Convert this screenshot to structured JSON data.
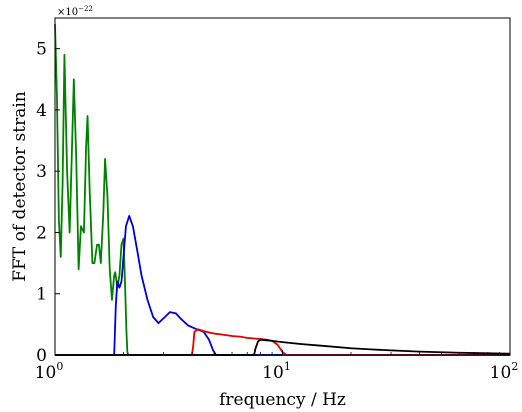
{
  "chart_data": {
    "type": "line",
    "title": "",
    "xlabel": "frequency / Hz",
    "ylabel": "FFT of detector strain",
    "x_scale": "log",
    "xlim": [
      1,
      100
    ],
    "ylim": [
      0,
      5.5
    ],
    "y_multiplier": {
      "base": "×10",
      "exponent": "−22"
    },
    "x_ticks": [
      {
        "value": 1,
        "base": "10",
        "exp": "0"
      },
      {
        "value": 10,
        "base": "10",
        "exp": "1"
      },
      {
        "value": 100,
        "base": "10",
        "exp": "2"
      }
    ],
    "y_ticks": [
      "0",
      "1",
      "2",
      "3",
      "4",
      "5"
    ],
    "legend": "none",
    "grid": false,
    "series": [
      {
        "color": "#008000",
        "points": [
          [
            1.0,
            5.4
          ],
          [
            1.02,
            4.2
          ],
          [
            1.04,
            2.2
          ],
          [
            1.06,
            1.6
          ],
          [
            1.08,
            2.8
          ],
          [
            1.1,
            4.9
          ],
          [
            1.13,
            3.0
          ],
          [
            1.16,
            2.0
          ],
          [
            1.19,
            3.5
          ],
          [
            1.21,
            4.5
          ],
          [
            1.24,
            3.2
          ],
          [
            1.27,
            1.4
          ],
          [
            1.3,
            2.1
          ],
          [
            1.34,
            2.0
          ],
          [
            1.37,
            3.4
          ],
          [
            1.39,
            3.9
          ],
          [
            1.42,
            2.7
          ],
          [
            1.46,
            1.5
          ],
          [
            1.49,
            1.5
          ],
          [
            1.53,
            1.8
          ],
          [
            1.56,
            1.8
          ],
          [
            1.59,
            1.5
          ],
          [
            1.63,
            2.3
          ],
          [
            1.66,
            3.2
          ],
          [
            1.7,
            2.6
          ],
          [
            1.74,
            1.4
          ],
          [
            1.78,
            0.9
          ],
          [
            1.82,
            1.3
          ],
          [
            1.84,
            1.35
          ],
          [
            1.88,
            1.1
          ],
          [
            1.92,
            1.3
          ],
          [
            1.96,
            1.8
          ],
          [
            2.0,
            1.9
          ],
          [
            2.03,
            1.2
          ],
          [
            2.06,
            0.4
          ],
          [
            2.08,
            0.05
          ],
          [
            2.1,
            0.0
          ],
          [
            10.0,
            0.0
          ]
        ]
      },
      {
        "color": "#0000cc",
        "points": [
          [
            1.0,
            0.0
          ],
          [
            1.82,
            0.0
          ],
          [
            1.85,
            0.8
          ],
          [
            1.88,
            1.2
          ],
          [
            1.92,
            1.1
          ],
          [
            1.96,
            1.2
          ],
          [
            2.0,
            1.6
          ],
          [
            2.05,
            2.1
          ],
          [
            2.12,
            2.27
          ],
          [
            2.2,
            2.1
          ],
          [
            2.3,
            1.7
          ],
          [
            2.4,
            1.3
          ],
          [
            2.55,
            0.9
          ],
          [
            2.7,
            0.62
          ],
          [
            2.85,
            0.52
          ],
          [
            3.0,
            0.6
          ],
          [
            3.2,
            0.7
          ],
          [
            3.4,
            0.68
          ],
          [
            3.6,
            0.58
          ],
          [
            3.85,
            0.48
          ],
          [
            4.2,
            0.42
          ],
          [
            4.5,
            0.38
          ],
          [
            4.75,
            0.25
          ],
          [
            4.95,
            0.08
          ],
          [
            5.1,
            0.0
          ],
          [
            100.0,
            0.0
          ]
        ]
      },
      {
        "color": "#e00000",
        "points": [
          [
            1.0,
            0.0
          ],
          [
            4.0,
            0.0
          ],
          [
            4.05,
            0.15
          ],
          [
            4.1,
            0.38
          ],
          [
            4.25,
            0.42
          ],
          [
            4.6,
            0.38
          ],
          [
            5.0,
            0.35
          ],
          [
            5.5,
            0.33
          ],
          [
            6.0,
            0.31
          ],
          [
            6.5,
            0.3
          ],
          [
            7.0,
            0.28
          ],
          [
            7.5,
            0.27
          ],
          [
            8.0,
            0.26
          ],
          [
            8.5,
            0.25
          ],
          [
            9.0,
            0.23
          ],
          [
            9.5,
            0.17
          ],
          [
            10.0,
            0.05
          ],
          [
            10.4,
            0.0
          ],
          [
            100.0,
            0.0
          ]
        ]
      },
      {
        "color": "#000000",
        "points": [
          [
            1.0,
            0.0
          ],
          [
            7.5,
            0.0
          ],
          [
            7.6,
            0.1
          ],
          [
            7.8,
            0.22
          ],
          [
            8.0,
            0.25
          ],
          [
            9.0,
            0.23
          ],
          [
            10.0,
            0.21
          ],
          [
            12.0,
            0.18
          ],
          [
            15.0,
            0.15
          ],
          [
            20.0,
            0.11
          ],
          [
            25.0,
            0.09
          ],
          [
            30.0,
            0.075
          ],
          [
            40.0,
            0.055
          ],
          [
            50.0,
            0.045
          ],
          [
            60.0,
            0.037
          ],
          [
            70.0,
            0.032
          ],
          [
            80.0,
            0.028
          ],
          [
            90.0,
            0.025
          ],
          [
            100.0,
            0.022
          ]
        ]
      }
    ]
  }
}
